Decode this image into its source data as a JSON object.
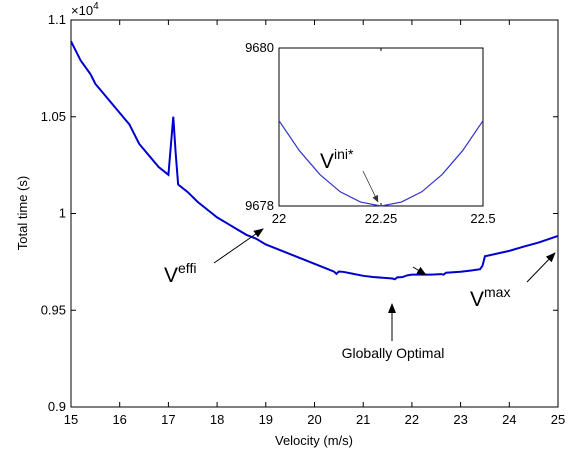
{
  "chart_data": [
    {
      "type": "line",
      "xlabel": "Velocity (m/s)",
      "ylabel": "Total time (s)",
      "exponent_base": "×10",
      "exponent_power": "4",
      "xlim": [
        15,
        25
      ],
      "ylim": [
        0.9,
        1.1
      ],
      "xticks": [
        "15",
        "16",
        "17",
        "18",
        "19",
        "20",
        "21",
        "22",
        "23",
        "24",
        "25"
      ],
      "yticks": [
        "0.9",
        "0.95",
        "1",
        "1.05",
        "1.1"
      ],
      "series_color": "#0000cc",
      "x": [
        15.0,
        15.2,
        15.4,
        15.5,
        15.6,
        15.8,
        16.0,
        16.2,
        16.4,
        16.6,
        16.8,
        17.0,
        17.05,
        17.1,
        17.15,
        17.2,
        17.4,
        17.6,
        17.8,
        18.0,
        18.2,
        18.4,
        18.6,
        18.8,
        19.0,
        19.2,
        19.4,
        19.6,
        19.8,
        20.0,
        20.2,
        20.4,
        20.45,
        20.5,
        20.6,
        20.8,
        21.0,
        21.2,
        21.4,
        21.6,
        21.65,
        21.7,
        21.8,
        21.9,
        22.0,
        22.1,
        22.2,
        22.3,
        22.4,
        22.6,
        22.65,
        22.7,
        23.0,
        23.2,
        23.4,
        23.45,
        23.5,
        23.7,
        24.0,
        24.3,
        24.6,
        25.0
      ],
      "y": [
        1.089,
        1.079,
        1.072,
        1.067,
        1.064,
        1.058,
        1.052,
        1.046,
        1.036,
        1.03,
        1.024,
        1.02,
        1.035,
        1.05,
        1.031,
        1.015,
        1.011,
        1.006,
        1.002,
        0.998,
        0.995,
        0.992,
        0.989,
        0.987,
        0.984,
        0.982,
        0.98,
        0.978,
        0.976,
        0.974,
        0.972,
        0.97,
        0.9688,
        0.97,
        0.9698,
        0.9688,
        0.9678,
        0.9672,
        0.9668,
        0.9664,
        0.966,
        0.967,
        0.9671,
        0.968,
        0.9684,
        0.9684,
        0.9684,
        0.9684,
        0.9684,
        0.9687,
        0.9684,
        0.9694,
        0.9699,
        0.9705,
        0.9712,
        0.973,
        0.9779,
        0.979,
        0.9807,
        0.9829,
        0.985,
        0.9884
      ]
    },
    {
      "type": "line",
      "xlim": [
        22,
        22.5
      ],
      "ylim": [
        9678,
        9680
      ],
      "xticks": [
        "22",
        "22.25",
        "22.5"
      ],
      "yticks": [
        "9678",
        "9680"
      ],
      "series_color": "#3333cc",
      "x": [
        22.0,
        22.05,
        22.1,
        22.15,
        22.2,
        22.25,
        22.3,
        22.35,
        22.4,
        22.45,
        22.5
      ],
      "y": [
        9679.08,
        9678.7,
        9678.4,
        9678.18,
        9678.05,
        9678.0,
        9678.05,
        9678.18,
        9678.4,
        9678.7,
        9679.08
      ]
    }
  ],
  "annotations": {
    "v_effi": {
      "base": "V",
      "sup": "effi"
    },
    "v_max": {
      "base": "V",
      "sup": "max"
    },
    "globally_optimal": {
      "text": "Globally Optimal"
    },
    "v_ini": {
      "base": "V",
      "sup": "ini*"
    }
  }
}
